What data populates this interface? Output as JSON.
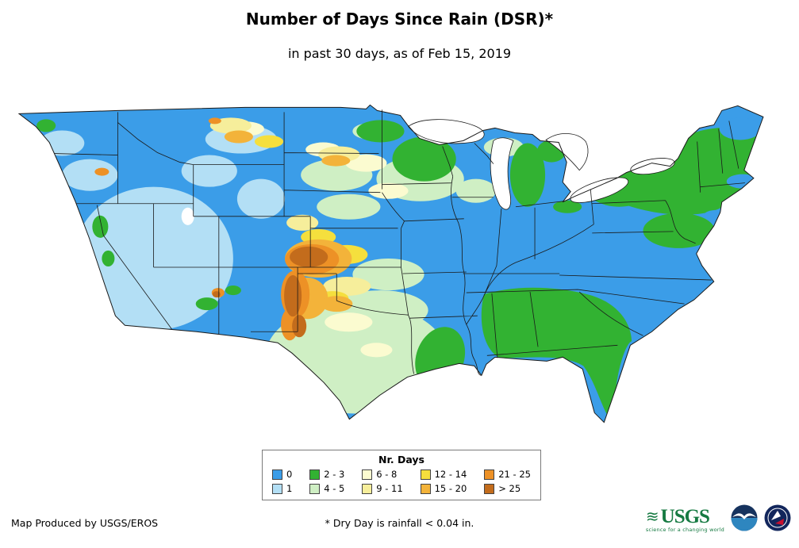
{
  "header": {
    "title": "Number of Days Since Rain (DSR)*",
    "subtitle": "in past 30 days, as of Feb 15, 2019"
  },
  "legend": {
    "title": "Nr. Days",
    "items": [
      {
        "label": "0",
        "color": "#3B9DE8"
      },
      {
        "label": "1",
        "color": "#B3DFF5"
      },
      {
        "label": "2 - 3",
        "color": "#32B232"
      },
      {
        "label": "4 - 5",
        "color": "#CFEFC4"
      },
      {
        "label": "6 - 8",
        "color": "#FBFBD0"
      },
      {
        "label": "9 - 11",
        "color": "#F6EE9B"
      },
      {
        "label": "12 - 14",
        "color": "#F5DF3D"
      },
      {
        "label": "15 - 20",
        "color": "#F3B33A"
      },
      {
        "label": "21 - 25",
        "color": "#ED9126"
      },
      {
        "label": "> 25",
        "color": "#C36C1C"
      }
    ]
  },
  "footer": {
    "credit": "Map Produced by USGS/EROS",
    "note": "* Dry Day is rainfall < 0.04 in.",
    "logos": [
      {
        "name": "usgs-logo",
        "text": "USGS",
        "tagline": "science for a changing world"
      },
      {
        "name": "noaa-logo"
      },
      {
        "name": "nws-logo"
      }
    ]
  }
}
